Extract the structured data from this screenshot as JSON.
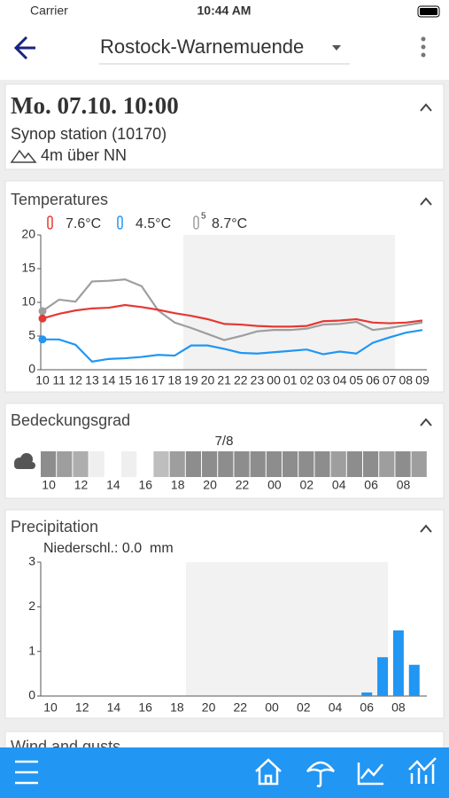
{
  "status": {
    "carrier": "Carrier",
    "time": "10:44 AM"
  },
  "header": {
    "station": "Rostock-Warnemuende"
  },
  "observation": {
    "title": "Mo. 07.10. 10:00",
    "station": "Synop station (10170)",
    "altitude": "4m über NN"
  },
  "temperatures": {
    "title": "Temperatures",
    "legend": [
      {
        "label": "7.6°C",
        "color": "#e53935"
      },
      {
        "label": "4.5°C",
        "color": "#2196f3"
      },
      {
        "label": "8.7°C",
        "color": "#9e9e9e",
        "sup": "5"
      }
    ],
    "chart_data": {
      "type": "line",
      "categories": [
        "10",
        "11",
        "12",
        "13",
        "14",
        "15",
        "16",
        "17",
        "18",
        "19",
        "20",
        "21",
        "22",
        "23",
        "00",
        "01",
        "02",
        "03",
        "04",
        "05",
        "06",
        "07",
        "08",
        "09"
      ],
      "series": [
        {
          "color": "#9e9e9e",
          "values": [
            8.7,
            10.4,
            10.1,
            13.1,
            13.2,
            13.4,
            12.4,
            8.8,
            7.0,
            6.2,
            5.3,
            4.4,
            5.0,
            5.7,
            5.9,
            5.9,
            6.1,
            6.7,
            6.8,
            7.1,
            5.9,
            6.2,
            6.6,
            7.0
          ]
        },
        {
          "color": "#2196f3",
          "values": [
            4.5,
            4.5,
            3.7,
            1.2,
            1.6,
            1.7,
            1.9,
            2.2,
            2.1,
            3.6,
            3.6,
            3.1,
            2.5,
            2.4,
            2.6,
            2.8,
            3.0,
            2.3,
            2.7,
            2.4,
            4.0,
            4.8,
            5.5,
            5.9
          ]
        },
        {
          "color": "#e53935",
          "values": [
            7.6,
            8.3,
            8.8,
            9.1,
            9.2,
            9.6,
            9.3,
            8.9,
            8.4,
            8.0,
            7.5,
            6.8,
            6.7,
            6.5,
            6.4,
            6.4,
            6.5,
            7.2,
            7.3,
            7.5,
            7.0,
            6.9,
            7.0,
            7.3
          ]
        }
      ],
      "ylim": [
        0,
        20
      ],
      "yticks": [
        0,
        5,
        10,
        15,
        20
      ]
    }
  },
  "cloud_cover": {
    "title": "Bedeckungsgrad",
    "current": "7/8",
    "chart_data": {
      "type": "heatmap",
      "categories": [
        "10",
        null,
        "12",
        null,
        "14",
        null,
        "16",
        null,
        "18",
        null,
        "20",
        null,
        "22",
        null,
        "00",
        null,
        "02",
        null,
        "04",
        null,
        "06",
        null,
        "08",
        null
      ],
      "values": [
        7,
        6,
        5,
        1,
        0,
        1,
        0,
        4,
        6,
        7,
        7,
        7,
        7,
        7,
        7,
        7,
        7,
        7,
        6,
        7,
        7,
        6,
        7,
        6
      ],
      "clim": [
        0,
        8
      ]
    }
  },
  "precipitation": {
    "title": "Precipitation",
    "legend": "Niederschl.: 0.0  mm",
    "chart_data": {
      "type": "bar",
      "color": "#2196f3",
      "categories": [
        "10",
        null,
        "12",
        null,
        "14",
        null,
        "16",
        null,
        "18",
        null,
        "20",
        null,
        "22",
        null,
        "00",
        null,
        "02",
        null,
        "04",
        null,
        "06",
        null,
        "08",
        null
      ],
      "values": [
        0,
        0,
        0,
        0,
        0,
        0,
        0,
        0,
        0,
        0,
        0,
        0,
        0,
        0,
        0,
        0,
        0,
        0,
        0,
        0,
        0.08,
        0.87,
        1.47,
        0.7
      ],
      "ylim": [
        0,
        3
      ],
      "yticks": [
        0,
        1,
        2,
        3
      ]
    }
  },
  "wind": {
    "title": "Wind and gusts"
  }
}
